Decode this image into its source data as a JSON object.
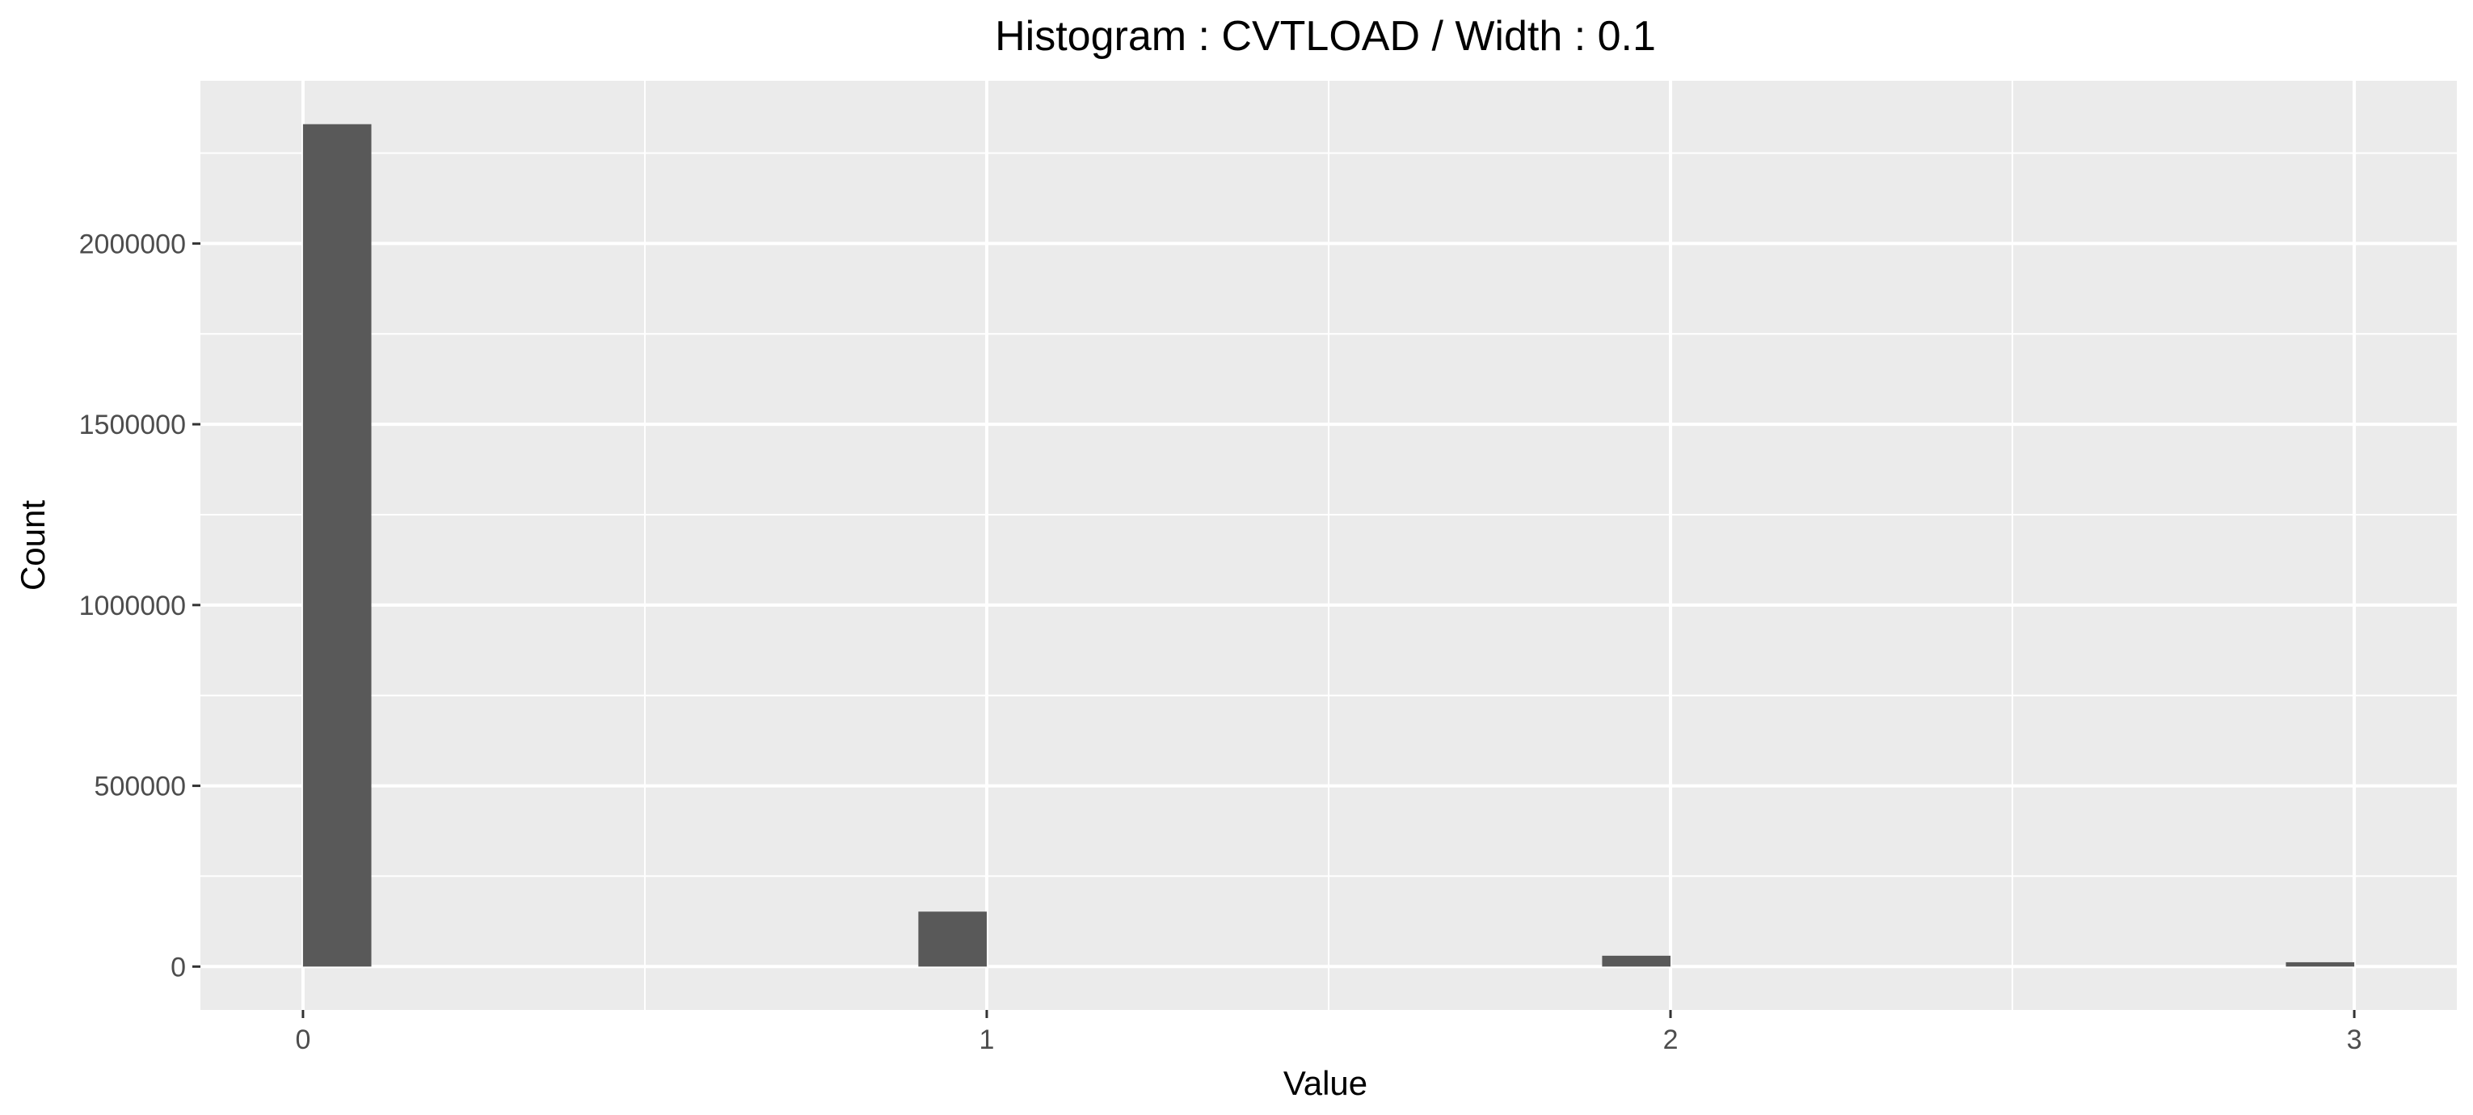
{
  "chart_data": {
    "type": "bar",
    "title": "Histogram : CVTLOAD / Width : 0.1",
    "xlabel": "Value",
    "ylabel": "Count",
    "bin_width": 0.1,
    "bins": [
      {
        "x_start": 0.0,
        "x_end": 0.1,
        "count": 2330000
      },
      {
        "x_start": 0.9,
        "x_end": 1.0,
        "count": 152000
      },
      {
        "x_start": 1.9,
        "x_end": 2.0,
        "count": 30000
      },
      {
        "x_start": 2.9,
        "x_end": 3.0,
        "count": 12000
      }
    ],
    "xlim": [
      -0.15,
      3.15
    ],
    "ylim": [
      -120000,
      2450000
    ],
    "x_ticks": [
      0,
      1,
      2,
      3
    ],
    "x_tick_labels": [
      "0",
      "1",
      "2",
      "3"
    ],
    "x_minor_ticks": [
      0.5,
      1.5,
      2.5
    ],
    "y_ticks": [
      0,
      500000,
      1000000,
      1500000,
      2000000
    ],
    "y_tick_labels": [
      "0",
      "500000",
      "1000000",
      "1500000",
      "2000000"
    ],
    "y_minor_ticks": [
      250000,
      750000,
      1250000,
      1750000,
      2250000
    ],
    "grid": true,
    "legend": "none",
    "colors": {
      "panel_background": "#ebebeb",
      "gridline": "#ffffff",
      "bar_fill": "#595959",
      "tick_mark": "#333333",
      "tick_label": "#4d4d4d",
      "text": "#000000"
    }
  }
}
